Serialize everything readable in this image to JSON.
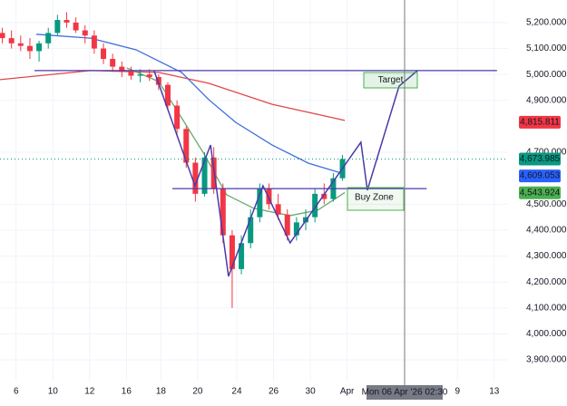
{
  "chart_data": {
    "type": "candlestick",
    "xlim": [
      -0.5,
      110
    ],
    "ylim": [
      3820,
      5287
    ],
    "xticks": [
      {
        "value": 3,
        "label": "6"
      },
      {
        "value": 11,
        "label": "10"
      },
      {
        "value": 19,
        "label": "12"
      },
      {
        "value": 27,
        "label": "16"
      },
      {
        "value": 34.5,
        "label": "18"
      },
      {
        "value": 42.5,
        "label": "20"
      },
      {
        "value": 51,
        "label": "24"
      },
      {
        "value": 59,
        "label": "26"
      },
      {
        "value": 67,
        "label": "30"
      },
      {
        "value": 75,
        "label": "Apr"
      },
      {
        "value": 99,
        "label": "9"
      },
      {
        "value": 107,
        "label": "13"
      }
    ],
    "yticks": [
      {
        "value": 5200,
        "label": "5,200.000"
      },
      {
        "value": 5100,
        "label": "5,100.000"
      },
      {
        "value": 5000,
        "label": "5,000.000"
      },
      {
        "value": 4900,
        "label": "4,900.000"
      },
      {
        "value": 4700,
        "label": "4,700.000"
      },
      {
        "value": 4500,
        "label": "4,500.000"
      },
      {
        "value": 4400,
        "label": "4,400.000"
      },
      {
        "value": 4300,
        "label": "4,300.000"
      },
      {
        "value": 4200,
        "label": "4,200.000"
      },
      {
        "value": 4100,
        "label": "4,100.000"
      },
      {
        "value": 4000,
        "label": "4,000.000"
      },
      {
        "value": 3900,
        "label": "3,900.000"
      }
    ],
    "up_color": "#089981",
    "down_color": "#f23645",
    "x": [
      0,
      2,
      4,
      6,
      8,
      10,
      12,
      14,
      16,
      18,
      20,
      22,
      24,
      26,
      28,
      30,
      32,
      34,
      36,
      38,
      40,
      42,
      44,
      46,
      48,
      50,
      52,
      54,
      56,
      58,
      60,
      62,
      64,
      66,
      68,
      70,
      72,
      74
    ],
    "open": [
      5160,
      5140,
      5120,
      5110,
      5090,
      5120,
      5160,
      5210,
      5200,
      5170,
      5150,
      5100,
      5060,
      5030,
      5010,
      4995,
      5000,
      4990,
      4960,
      4880,
      4790,
      4660,
      4540,
      4680,
      4560,
      4380,
      4250,
      4350,
      4450,
      4560,
      4500,
      4460,
      4380,
      4430,
      4450,
      4540,
      4520,
      4600
    ],
    "high": [
      5180,
      5170,
      5150,
      5140,
      5130,
      5180,
      5230,
      5240,
      5220,
      5190,
      5170,
      5120,
      5080,
      5050,
      5030,
      5020,
      5020,
      5000,
      4970,
      4900,
      4800,
      4680,
      4700,
      4720,
      4580,
      4400,
      4380,
      4480,
      4580,
      4580,
      4540,
      4480,
      4450,
      4480,
      4560,
      4580,
      4620,
      4690
    ],
    "low": [
      5120,
      5100,
      5090,
      5060,
      5050,
      5100,
      5150,
      5180,
      5160,
      5120,
      5080,
      5040,
      5010,
      4990,
      4980,
      4970,
      4975,
      4940,
      4860,
      4760,
      4640,
      4510,
      4530,
      4540,
      4350,
      4100,
      4230,
      4330,
      4430,
      4480,
      4440,
      4360,
      4360,
      4400,
      4430,
      4500,
      4510,
      4590
    ],
    "close": [
      5140,
      5120,
      5110,
      5090,
      5120,
      5160,
      5210,
      5200,
      5170,
      5150,
      5100,
      5060,
      5030,
      5010,
      4995,
      5000,
      4990,
      4960,
      4880,
      4790,
      4660,
      4540,
      4680,
      4560,
      4380,
      4250,
      4350,
      4450,
      4560,
      4500,
      4460,
      4380,
      4430,
      4450,
      4540,
      4520,
      4600,
      4674
    ],
    "ma": [
      {
        "color": "#e0474c",
        "x": [
          -0.5,
          19.2,
          34,
          44.9,
          58.7,
          74.5
        ],
        "values": [
          4980,
          5015,
          5008,
          4966,
          4885,
          4823
        ]
      },
      {
        "color": "#3e6fd8",
        "x": [
          7.4,
          19.2,
          29.1,
          39,
          44.9,
          50.8,
          58.7,
          66.6,
          74.5
        ],
        "values": [
          5155,
          5140,
          5095,
          5008,
          4903,
          4815,
          4728,
          4658,
          4616
        ]
      },
      {
        "color": "#6aa86a",
        "x": [
          27.1,
          34,
          39,
          43.9,
          48.8,
          54.7,
          62.6,
          68.6,
          74.5
        ],
        "values": [
          5025,
          4973,
          4833,
          4693,
          4536,
          4484,
          4456,
          4477,
          4545
        ]
      }
    ],
    "pattern": {
      "color": "#4b3aa8",
      "x": [
        33,
        41.9,
        45.3,
        49.2,
        56.7,
        62.6,
        75.5,
        78,
        79.4,
        86.3,
        90.3
      ],
      "values": [
        5015,
        4571,
        4728,
        4222,
        4571,
        4351,
        4676,
        4739,
        4554,
        4955,
        5015
      ]
    },
    "levels": [
      {
        "x": [
          7,
          107.6
        ],
        "values": [
          5015,
          5015
        ]
      },
      {
        "x": [
          37,
          92.3
        ],
        "values": [
          4560,
          4560
        ]
      }
    ],
    "price_labels": [
      {
        "value": 4815.811,
        "label": "4,815.811",
        "color": "#f23645"
      },
      {
        "value": 4673.985,
        "label": "4,673.985",
        "color": "#089981"
      },
      {
        "value": 4609.053,
        "label": "4,609.053",
        "color": "#2962ff"
      },
      {
        "value": 4543.924,
        "label": "4,543.924",
        "color": "#4caf50"
      }
    ],
    "annotations": [
      "Target",
      "Buy Zone"
    ],
    "crosshair_label": "Mon 06 Apr '26  02:30"
  }
}
